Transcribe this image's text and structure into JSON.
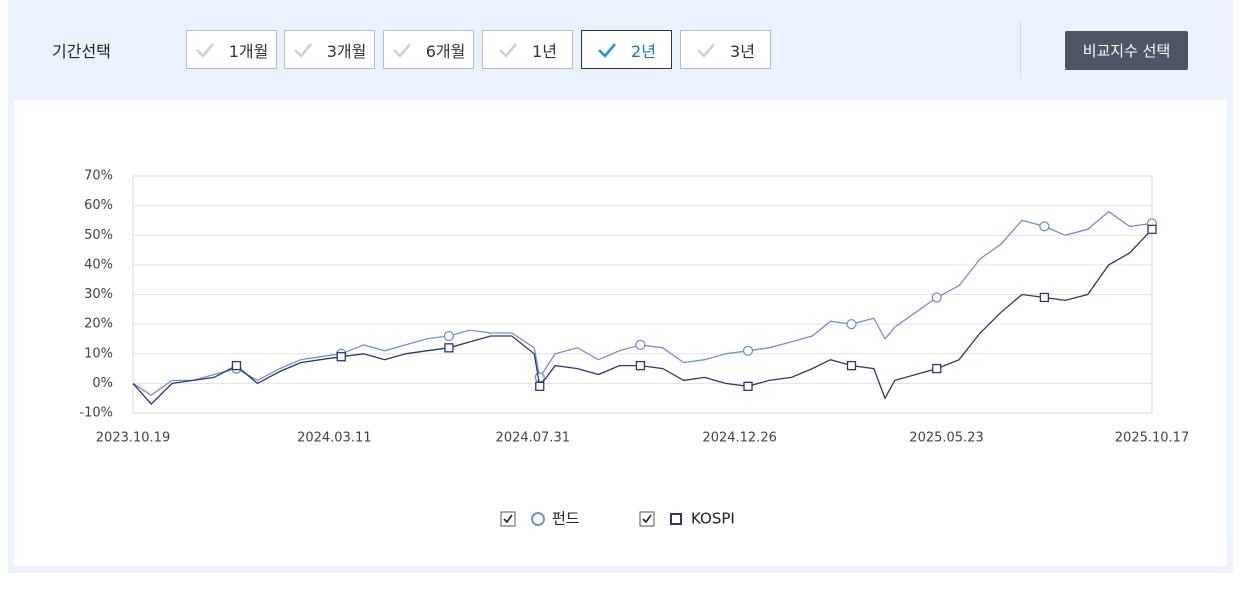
{
  "header": {
    "label": "기간선택",
    "periods": [
      "1개월",
      "3개월",
      "6개월",
      "1년",
      "2년",
      "3년"
    ],
    "selected": 4,
    "compare_button": "비교지수 선택"
  },
  "chart_data": {
    "type": "line",
    "x": [
      "2023.10.19",
      "2023.11.01",
      "2023.11.16",
      "2023.12.01",
      "2023.12.16",
      "2024.01.01",
      "2024.01.16",
      "2024.02.01",
      "2024.02.16",
      "2024.03.01",
      "2024.03.16",
      "2024.04.01",
      "2024.04.16",
      "2024.05.01",
      "2024.05.16",
      "2024.06.01",
      "2024.06.16",
      "2024.07.01",
      "2024.07.16",
      "2024.08.01",
      "2024.08.05",
      "2024.08.16",
      "2024.09.01",
      "2024.09.16",
      "2024.10.01",
      "2024.10.16",
      "2024.11.01",
      "2024.11.16",
      "2024.12.01",
      "2024.12.16",
      "2025.01.01",
      "2025.01.16",
      "2025.02.01",
      "2025.02.16",
      "2025.03.01",
      "2025.03.16",
      "2025.04.01",
      "2025.04.09",
      "2025.04.16",
      "2025.05.01",
      "2025.05.16",
      "2025.06.01",
      "2025.06.16",
      "2025.07.01",
      "2025.07.16",
      "2025.08.01",
      "2025.08.16",
      "2025.09.01",
      "2025.09.16",
      "2025.10.01",
      "2025.10.17"
    ],
    "series": [
      {
        "name": "펀드",
        "color": "#7090d8",
        "marker": "circle",
        "values": [
          0,
          -4,
          1,
          1,
          3,
          5,
          1,
          5,
          8,
          9,
          10,
          13,
          11,
          13,
          15,
          16,
          18,
          17,
          17,
          12,
          2,
          10,
          12,
          8,
          11,
          13,
          12,
          7,
          8,
          10,
          11,
          12,
          14,
          16,
          21,
          20,
          22,
          15,
          19,
          24,
          29,
          33,
          42,
          47,
          55,
          53,
          50,
          52,
          58,
          53,
          54
        ]
      },
      {
        "name": "KOSPI",
        "color": "#2b3a6e",
        "marker": "square",
        "values": [
          0,
          -7,
          0,
          1,
          2,
          6,
          0,
          4,
          7,
          8,
          9,
          10,
          8,
          10,
          11,
          12,
          14,
          16,
          16,
          10,
          -1,
          6,
          5,
          3,
          6,
          6,
          5,
          1,
          2,
          0,
          -1,
          1,
          2,
          5,
          8,
          6,
          5,
          -5,
          1,
          3,
          5,
          8,
          17,
          24,
          30,
          29,
          28,
          30,
          40,
          44,
          52
        ]
      }
    ],
    "xlim": [
      "2023.10.19",
      "2025.10.17"
    ],
    "xticks": [
      "2023.10.19",
      "2024.03.11",
      "2024.07.31",
      "2024.12.26",
      "2025.05.23",
      "2025.10.17"
    ],
    "ylim": [
      -10,
      70
    ],
    "yticks": [
      {
        "value": -10,
        "label": "-10%"
      },
      {
        "value": 0,
        "label": "0%"
      },
      {
        "value": 10,
        "label": "10%"
      },
      {
        "value": 20,
        "label": "20%"
      },
      {
        "value": 30,
        "label": "30%"
      },
      {
        "value": 40,
        "label": "40%"
      },
      {
        "value": 50,
        "label": "50%"
      },
      {
        "value": 60,
        "label": "60%"
      },
      {
        "value": 70,
        "label": "70%"
      }
    ],
    "grid": true,
    "legend": "bottom"
  }
}
